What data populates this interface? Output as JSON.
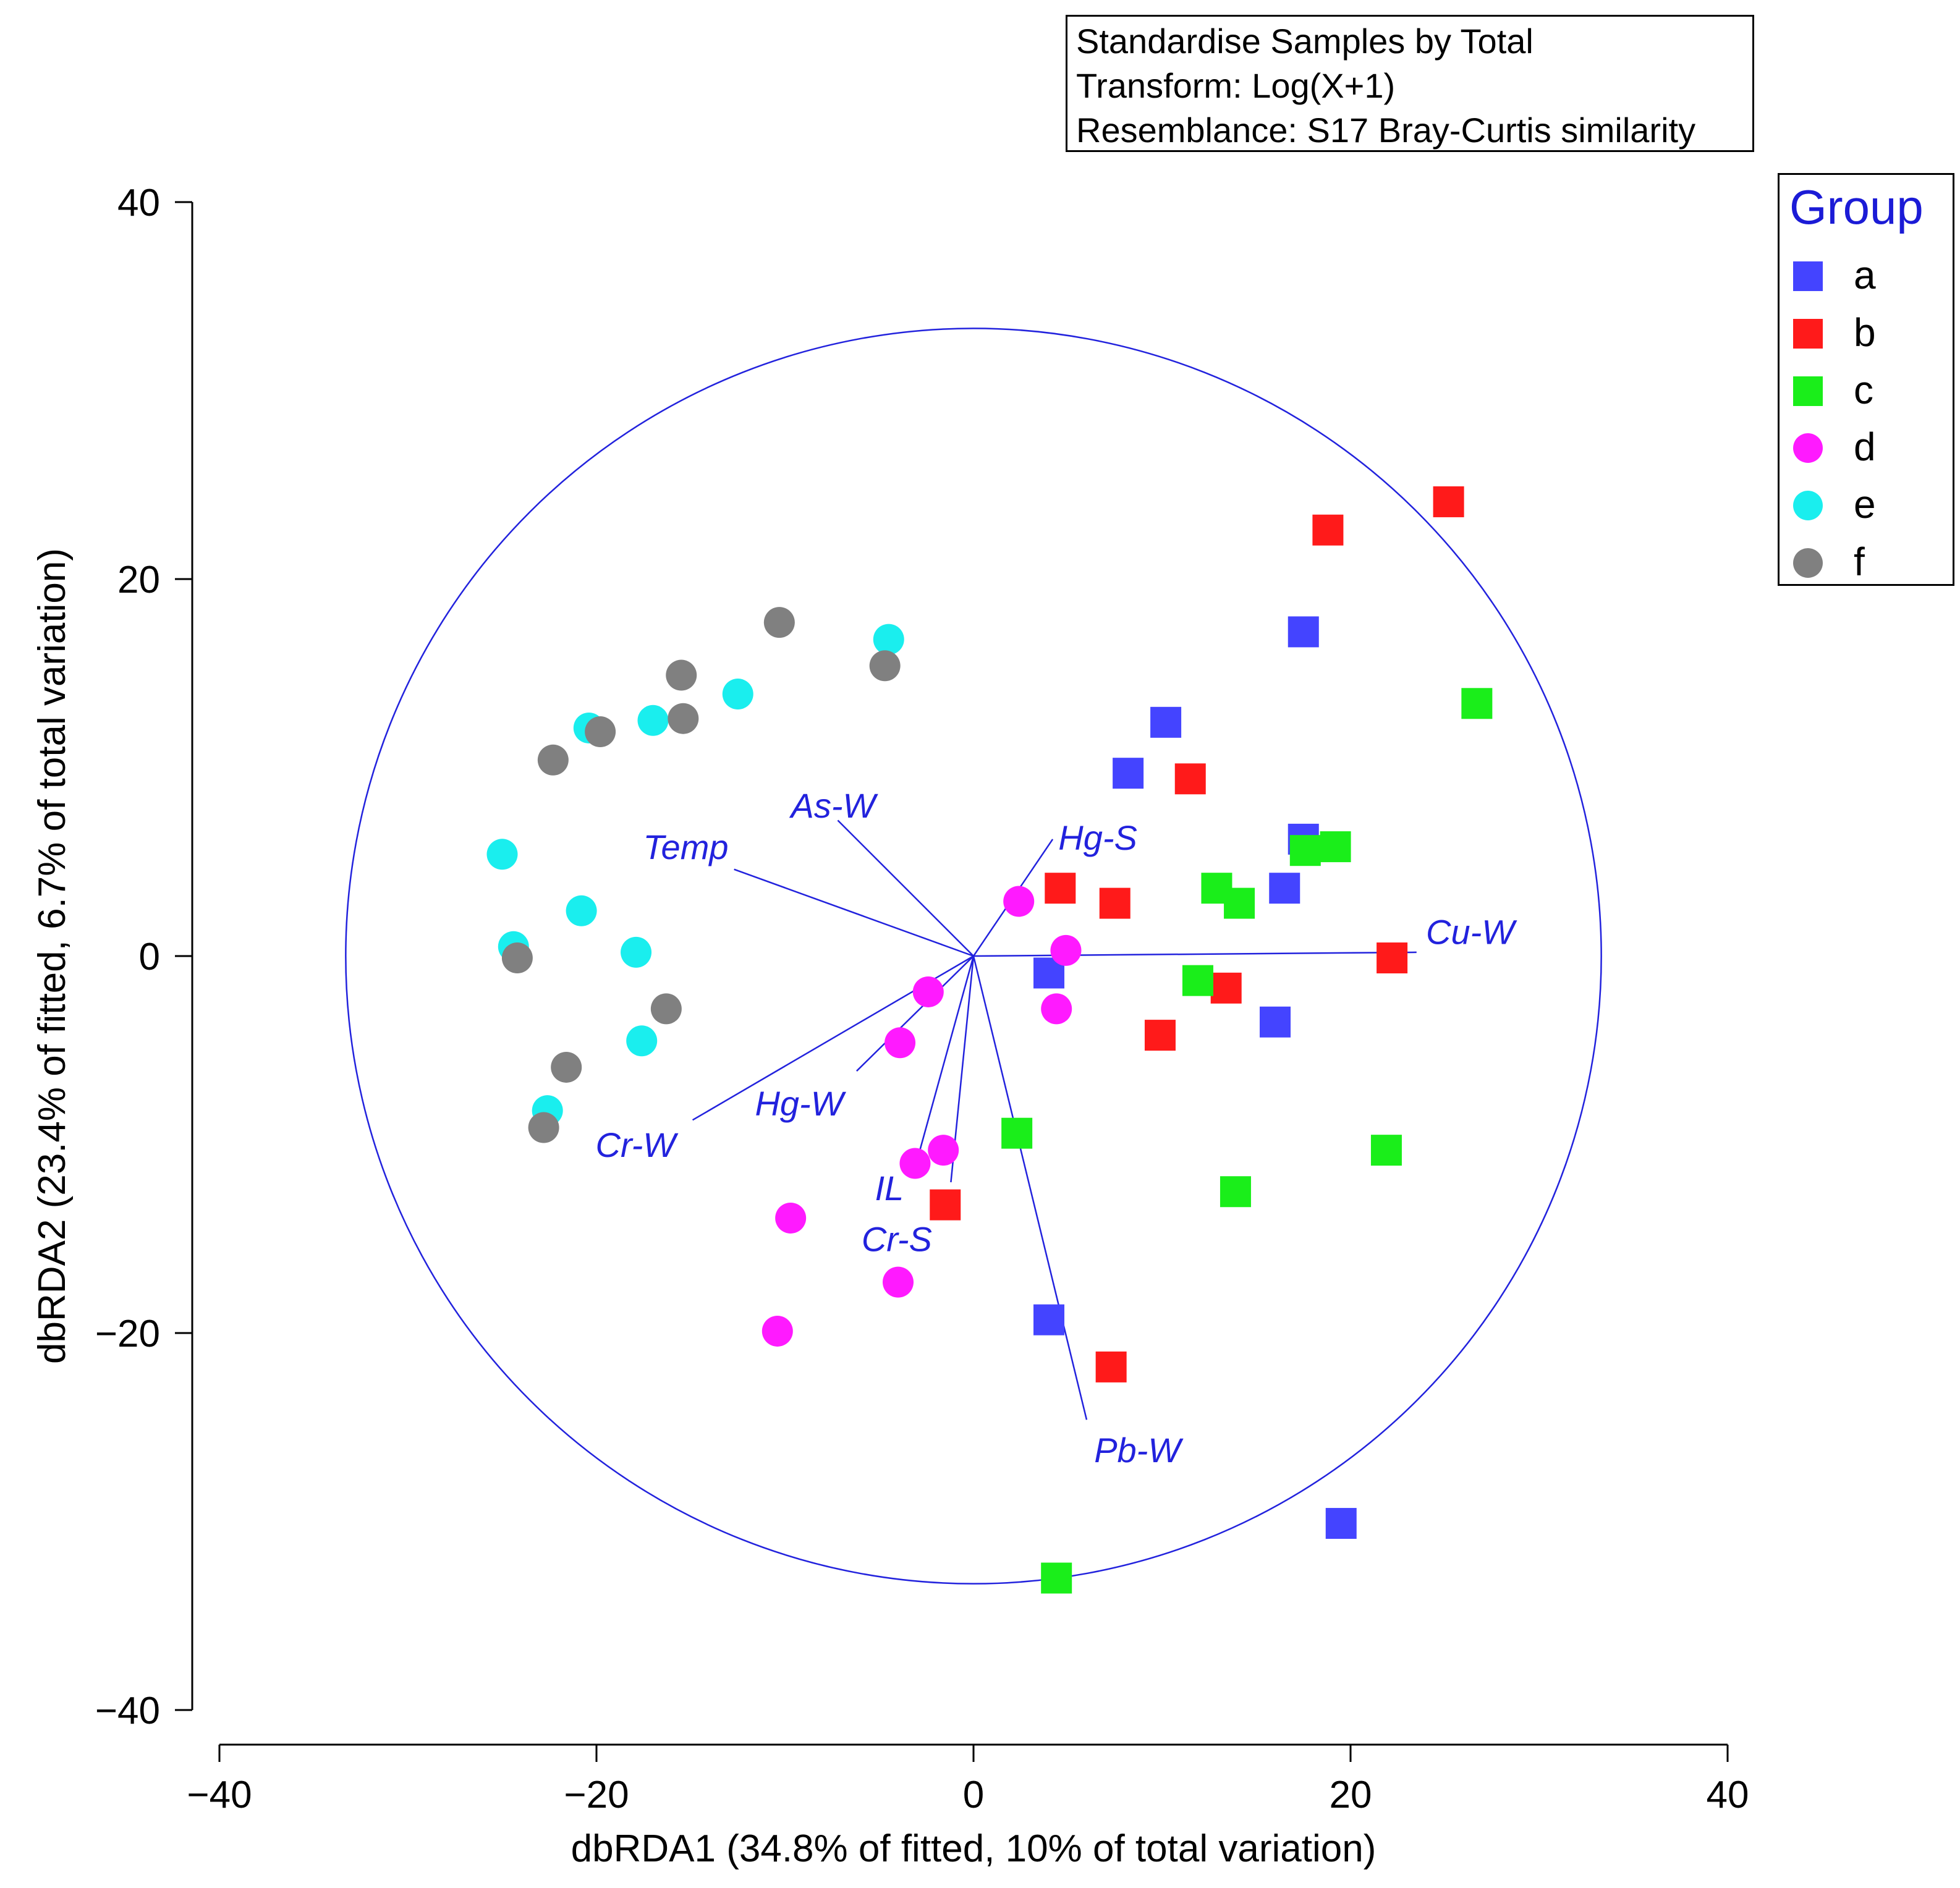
{
  "chart_data": {
    "type": "scatter",
    "info_box": {
      "lines": [
        "Standardise Samples by Total",
        "Transform: Log(X+1)",
        "Resemblance: S17 Bray-Curtis similarity"
      ]
    },
    "xlabel": "dbRDA1 (34.8% of fitted, 10% of total variation)",
    "ylabel": "dbRDA2 (23.4% of fitted, 6.7% of total variation)",
    "xlim": [
      -40,
      40
    ],
    "ylim": [
      -40,
      40
    ],
    "x_ticks": [
      -40,
      -20,
      0,
      20,
      40
    ],
    "y_ticks": [
      -40,
      -20,
      0,
      20,
      40
    ],
    "x_tick_labels": [
      "−40",
      "−20",
      "0",
      "20",
      "40"
    ],
    "y_tick_labels": [
      "−40",
      "−20",
      "0",
      "20",
      "40"
    ],
    "circle_radius": 33.3,
    "colors": {
      "axis": "#000000",
      "vector": "#2222dd",
      "circle": "#2222dd"
    },
    "legend": {
      "title": "Group",
      "position": "top-right",
      "items": [
        {
          "label": "a",
          "color": "#4444ff",
          "shape": "square"
        },
        {
          "label": "b",
          "color": "#ff1a1a",
          "shape": "square"
        },
        {
          "label": "c",
          "color": "#1aee1a",
          "shape": "square"
        },
        {
          "label": "d",
          "color": "#ff1aff",
          "shape": "circle"
        },
        {
          "label": "e",
          "color": "#1aeeee",
          "shape": "circle"
        },
        {
          "label": "f",
          "color": "#808080",
          "shape": "circle"
        }
      ]
    },
    "vectors": [
      {
        "name": "As-W",
        "x": -7.2,
        "y": 7.2
      },
      {
        "name": "Temp",
        "x": -12.7,
        "y": 4.6
      },
      {
        "name": "Hg-S",
        "x": 4.2,
        "y": 6.2
      },
      {
        "name": "Cu-W",
        "x": 23.5,
        "y": 0.2
      },
      {
        "name": "Hg-W",
        "x": -6.2,
        "y": -6.1
      },
      {
        "name": "Cr-W",
        "x": -14.9,
        "y": -8.7
      },
      {
        "name": "IL",
        "x": -2.9,
        "y": -10.5
      },
      {
        "name": "Cr-S",
        "x": -1.2,
        "y": -12.0
      },
      {
        "name": "Pb-W",
        "x": 6.0,
        "y": -24.6
      }
    ],
    "series": [
      {
        "name": "a",
        "points": [
          [
            17.5,
            17.2
          ],
          [
            10.2,
            12.4
          ],
          [
            8.2,
            9.7
          ],
          [
            17.5,
            6.2
          ],
          [
            16.5,
            3.6
          ],
          [
            4.0,
            -0.9
          ],
          [
            16.0,
            -3.5
          ],
          [
            4.0,
            -19.3
          ],
          [
            19.5,
            -30.1
          ]
        ]
      },
      {
        "name": "b",
        "points": [
          [
            25.2,
            24.1
          ],
          [
            18.8,
            22.6
          ],
          [
            11.5,
            9.4
          ],
          [
            4.6,
            3.6
          ],
          [
            7.5,
            2.8
          ],
          [
            22.2,
            -0.1
          ],
          [
            13.4,
            -1.7
          ],
          [
            9.9,
            -4.2
          ],
          [
            -1.5,
            -13.2
          ],
          [
            7.3,
            -21.8
          ]
        ]
      },
      {
        "name": "c",
        "points": [
          [
            26.7,
            13.4
          ],
          [
            12.9,
            3.6
          ],
          [
            14.1,
            2.8
          ],
          [
            17.6,
            5.6
          ],
          [
            19.2,
            5.8
          ],
          [
            11.9,
            -1.3
          ],
          [
            2.3,
            -9.4
          ],
          [
            21.9,
            -10.3
          ],
          [
            13.9,
            -12.5
          ],
          [
            4.4,
            -33.0
          ]
        ]
      },
      {
        "name": "d",
        "points": [
          [
            2.4,
            2.9
          ],
          [
            4.9,
            0.3
          ],
          [
            -2.4,
            -1.9
          ],
          [
            4.4,
            -2.8
          ],
          [
            -3.9,
            -4.6
          ],
          [
            -1.6,
            -10.3
          ],
          [
            -3.1,
            -11.0
          ],
          [
            -9.7,
            -13.9
          ],
          [
            -4.0,
            -17.3
          ],
          [
            -10.4,
            -19.9
          ]
        ]
      },
      {
        "name": "e",
        "points": [
          [
            -4.5,
            16.8
          ],
          [
            -12.5,
            13.9
          ],
          [
            -17.0,
            12.5
          ],
          [
            -20.4,
            12.1
          ],
          [
            -25.0,
            5.4
          ],
          [
            -20.8,
            2.4
          ],
          [
            -24.4,
            0.5
          ],
          [
            -17.9,
            0.2
          ],
          [
            -17.6,
            -4.5
          ],
          [
            -22.6,
            -8.2
          ]
        ]
      },
      {
        "name": "f",
        "points": [
          [
            -10.3,
            17.7
          ],
          [
            -4.7,
            15.4
          ],
          [
            -15.5,
            14.9
          ],
          [
            -15.4,
            12.6
          ],
          [
            -19.8,
            11.9
          ],
          [
            -22.3,
            10.4
          ],
          [
            -24.2,
            -0.1
          ],
          [
            -16.3,
            -2.8
          ],
          [
            -21.6,
            -5.9
          ],
          [
            -22.8,
            -9.1
          ]
        ]
      }
    ]
  }
}
